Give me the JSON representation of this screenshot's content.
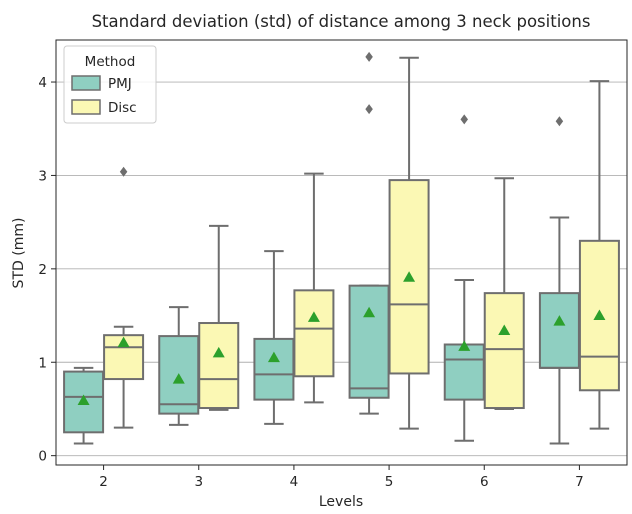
{
  "chart_data": {
    "type": "boxplot",
    "title": "Standard deviation (std) of distance among 3 neck positions",
    "xlabel": "Levels",
    "ylabel": "STD (mm)",
    "categories": [
      "2",
      "3",
      "4",
      "5",
      "6",
      "7"
    ],
    "ylim": [
      -0.1,
      4.45
    ],
    "yticks": [
      0,
      1,
      2,
      3,
      4
    ],
    "grid": "horizontal",
    "legend": {
      "title": "Method",
      "placement": "top-left",
      "entries": [
        "PMJ",
        "Disc"
      ]
    },
    "colors": {
      "PMJ": "#8fcfc1",
      "Disc": "#fbf8b4",
      "mean_marker": "#2ca02c",
      "box_line": "#6e6e6e",
      "grid": "#b0b0b0"
    },
    "series": [
      {
        "name": "PMJ",
        "boxes": [
          {
            "category": "2",
            "whisker_low": 0.13,
            "q1": 0.25,
            "median": 0.63,
            "q3": 0.9,
            "whisker_high": 0.94,
            "mean": 0.59,
            "outliers": []
          },
          {
            "category": "3",
            "whisker_low": 0.33,
            "q1": 0.45,
            "median": 0.55,
            "q3": 1.28,
            "whisker_high": 1.59,
            "mean": 0.82,
            "outliers": []
          },
          {
            "category": "4",
            "whisker_low": 0.34,
            "q1": 0.6,
            "median": 0.87,
            "q3": 1.25,
            "whisker_high": 2.19,
            "mean": 1.05,
            "outliers": []
          },
          {
            "category": "5",
            "whisker_low": 0.45,
            "q1": 0.62,
            "median": 0.72,
            "q3": 1.82,
            "whisker_high": 1.82,
            "mean": 1.53,
            "outliers": [
              3.71,
              4.27
            ]
          },
          {
            "category": "6",
            "whisker_low": 0.16,
            "q1": 0.6,
            "median": 1.03,
            "q3": 1.19,
            "whisker_high": 1.88,
            "mean": 1.17,
            "outliers": [
              3.6
            ]
          },
          {
            "category": "7",
            "whisker_low": 0.13,
            "q1": 0.94,
            "median": 0.94,
            "q3": 1.74,
            "whisker_high": 2.55,
            "mean": 1.44,
            "outliers": [
              3.58
            ]
          }
        ]
      },
      {
        "name": "Disc",
        "boxes": [
          {
            "category": "2",
            "whisker_low": 0.3,
            "q1": 0.82,
            "median": 1.16,
            "q3": 1.29,
            "whisker_high": 1.38,
            "mean": 1.21,
            "outliers": [
              3.04
            ]
          },
          {
            "category": "3",
            "whisker_low": 0.49,
            "q1": 0.51,
            "median": 0.82,
            "q3": 1.42,
            "whisker_high": 2.46,
            "mean": 1.1,
            "outliers": []
          },
          {
            "category": "4",
            "whisker_low": 0.57,
            "q1": 0.85,
            "median": 1.36,
            "q3": 1.77,
            "whisker_high": 3.02,
            "mean": 1.48,
            "outliers": []
          },
          {
            "category": "5",
            "whisker_low": 0.29,
            "q1": 0.88,
            "median": 1.62,
            "q3": 2.95,
            "whisker_high": 4.26,
            "mean": 1.91,
            "outliers": []
          },
          {
            "category": "6",
            "whisker_low": 0.5,
            "q1": 0.51,
            "median": 1.14,
            "q3": 1.74,
            "whisker_high": 2.97,
            "mean": 1.34,
            "outliers": []
          },
          {
            "category": "7",
            "whisker_low": 0.29,
            "q1": 0.7,
            "median": 1.06,
            "q3": 2.3,
            "whisker_high": 4.01,
            "mean": 1.5,
            "outliers": []
          }
        ]
      }
    ]
  }
}
